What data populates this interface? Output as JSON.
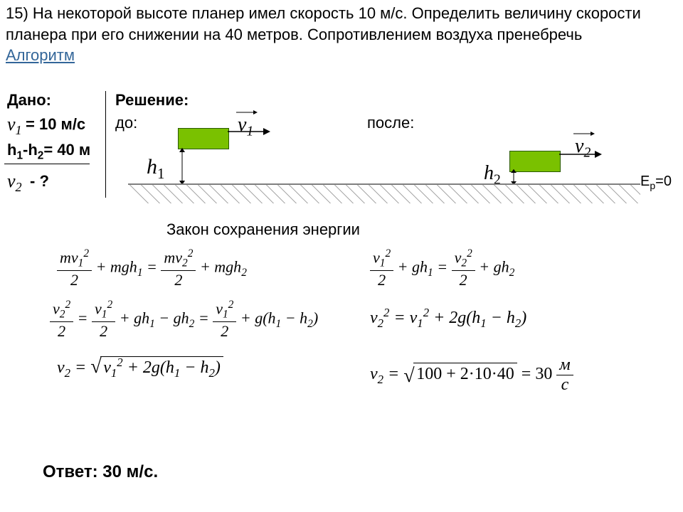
{
  "problem": {
    "text": "15) На некоторой высоте планер имел скорость 10 м/с. Определить величину скорости планера при его снижении на 40 метров. Сопротивлением воздуха пренебречь",
    "algorithm_link": "Алгоритм"
  },
  "given": {
    "title": "Дано:",
    "v1_sym": "v",
    "v1_sub": "1",
    "v1_val": " = 10 м/с",
    "dh_label": "h",
    "dh_sub1": "1",
    "dh_minus": " - ",
    "dh_sub2": "2",
    "dh_val": "= 40 м",
    "v2_sym": "v",
    "v2_sub": "2",
    "v2_q": " - ?"
  },
  "solution": {
    "title": "Решение:",
    "before": "до:",
    "after": "после:",
    "v1": "v",
    "v1s": "1",
    "v2": "v",
    "v2s": "2",
    "h1": "h",
    "h1s": "1",
    "h2": "h",
    "h2s": "2",
    "ep": "Е",
    "epsub": "p",
    "ep0": "=0",
    "law": "Закон сохранения энергии",
    "glider_fill": "#7ac100",
    "glider_stroke": "#2a5a00",
    "ground_color": "#808080"
  },
  "formulas": {
    "f1": "mv₁²/2 + mgh₁ = mv₂²/2 + mgh₂",
    "f2": "v₁²/2 + gh₁ = v₂²/2 + gh₂",
    "f3": "v₂²/2 = v₁²/2 + gh₁ − gh₂ = v₁²/2 + g(h₁ − h₂)",
    "f4": "v₂² = v₁² + 2g(h₁ − h₂)",
    "f5": "v₂ = √(v₁² + 2g(h₁ − h₂))",
    "f6_lhs": "v₂ = ",
    "f6_root": "100 + 2·10·40",
    "f6_eq": " = 30",
    "f6_unit_num": "м",
    "f6_unit_den": "с"
  },
  "answer": "Ответ: 30 м/с."
}
